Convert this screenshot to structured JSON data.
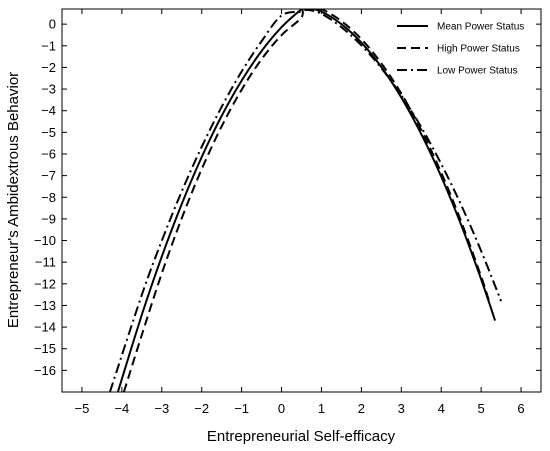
{
  "chart_data": {
    "type": "line",
    "title": "",
    "xlabel": "Entrepreneurial Self-efficacy",
    "ylabel": "Entrepreneur's Ambidextrous Behavior",
    "xlim": [
      -5.5,
      6.5
    ],
    "ylim": [
      -17,
      0.7
    ],
    "xticks": [
      -5,
      -4,
      -3,
      -2,
      -1,
      0,
      1,
      2,
      3,
      4,
      5,
      6
    ],
    "xtick_labels": [
      "−5",
      "−4",
      "−3",
      "−2",
      "−1",
      "0",
      "1",
      "2",
      "3",
      "4",
      "5",
      "6"
    ],
    "yticks": [
      0,
      -1,
      -2,
      -3,
      -4,
      -5,
      -6,
      -7,
      -8,
      -9,
      -10,
      -11,
      -12,
      -13,
      -14,
      -15,
      -16
    ],
    "ytick_labels": [
      "0",
      "−1",
      "−2",
      "−3",
      "−4",
      "−5",
      "−6",
      "−7",
      "−8",
      "−9",
      "−10",
      "−11",
      "−12",
      "−13",
      "−14",
      "−15",
      "−16"
    ],
    "grid": false,
    "legend_position": "top-right",
    "series": [
      {
        "name": "Mean Power Status",
        "dash": "solid",
        "x": [
          -4.1,
          -3.5,
          -3.0,
          -2.5,
          -2.0,
          -1.5,
          -1.0,
          -0.5,
          0.0,
          0.5,
          0.6,
          1.0,
          1.5,
          2.0,
          2.5,
          3.0,
          3.5,
          4.0,
          4.5,
          5.0,
          5.35
        ],
        "y": [
          -17.0,
          -13.43,
          -10.74,
          -8.31,
          -6.14,
          -4.24,
          -2.61,
          -1.24,
          -0.14,
          0.69,
          0.76,
          0.58,
          0.0,
          -0.85,
          -1.98,
          -3.39,
          -5.08,
          -7.04,
          -9.28,
          -11.79,
          -13.7
        ]
      },
      {
        "name": "High Power Status",
        "dash": "dashed",
        "x": [
          -3.95,
          -3.5,
          -3.0,
          -2.5,
          -2.0,
          -1.5,
          -1.0,
          -0.5,
          0.0,
          0.5,
          0.55,
          1.0,
          1.5,
          2.0,
          2.5,
          3.0,
          3.5,
          4.0,
          4.5,
          5.0,
          5.2
        ],
        "y": [
          -17.0,
          -14.36,
          -11.52,
          -8.97,
          -6.7,
          -4.72,
          -3.03,
          -1.62,
          -0.51,
          0.31,
          0.85,
          0.69,
          0.14,
          -0.69,
          -1.81,
          -3.21,
          -4.89,
          -6.86,
          -9.12,
          -11.66,
          -12.8
        ]
      },
      {
        "name": "Low Power Status",
        "dash": "dashdot",
        "x": [
          -4.3,
          -3.5,
          -3.0,
          -2.5,
          -2.0,
          -1.5,
          -1.0,
          -0.5,
          0.0,
          0.5,
          0.65,
          1.0,
          1.5,
          2.0,
          2.5,
          3.0,
          3.5,
          4.0,
          4.5,
          5.0,
          5.5
        ],
        "y": [
          -17.0,
          -12.51,
          -10.01,
          -7.73,
          -5.67,
          -3.82,
          -2.19,
          -0.79,
          0.4,
          0.58,
          0.66,
          0.48,
          -0.14,
          -0.98,
          -2.03,
          -3.29,
          -4.76,
          -6.46,
          -8.36,
          -10.48,
          -12.8
        ]
      }
    ]
  }
}
